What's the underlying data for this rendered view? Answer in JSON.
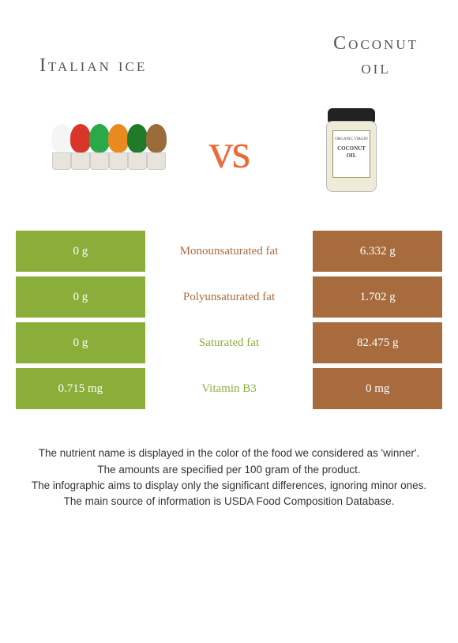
{
  "header": {
    "left_title": "Italian ice",
    "right_title_line1": "Coconut",
    "right_title_line2": "oil",
    "vs": "vs"
  },
  "colors": {
    "green": "#8bae3a",
    "brown": "#a86b3e",
    "winner_green_text": "#8bae3a",
    "winner_brown_text": "#a86b3e"
  },
  "cones": [
    {
      "swirl": "#f5f5f5"
    },
    {
      "swirl": "#d9362a"
    },
    {
      "swirl": "#2aa84a"
    },
    {
      "swirl": "#e88a1f"
    },
    {
      "swirl": "#1f7a2a"
    },
    {
      "swirl": "#9c6b3c"
    }
  ],
  "jar_label_top": "ORGANIC VIRGIN",
  "jar_label_main": "COCONUT OIL",
  "rows": [
    {
      "left_val": "0 g",
      "label": "Monounsaturated fat",
      "right_val": "6.332 g",
      "left_bg": "#8bae3a",
      "right_bg": "#a86b3e",
      "label_color": "#a86b3e"
    },
    {
      "left_val": "0 g",
      "label": "Polyunsaturated fat",
      "right_val": "1.702 g",
      "left_bg": "#8bae3a",
      "right_bg": "#a86b3e",
      "label_color": "#a86b3e"
    },
    {
      "left_val": "0 g",
      "label": "Saturated fat",
      "right_val": "82.475 g",
      "left_bg": "#8bae3a",
      "right_bg": "#a86b3e",
      "label_color": "#8bae3a"
    },
    {
      "left_val": "0.715 mg",
      "label": "Vitamin B3",
      "right_val": "0 mg",
      "left_bg": "#8bae3a",
      "right_bg": "#a86b3e",
      "label_color": "#8bae3a"
    }
  ],
  "footer": {
    "line1": "The nutrient name is displayed in the color of the food we considered as 'winner'.",
    "line2": "The amounts are specified per 100 gram of the product.",
    "line3": "The infographic aims to display only the significant differences, ignoring minor ones.",
    "line4": "The main source of information is USDA Food Composition Database."
  }
}
